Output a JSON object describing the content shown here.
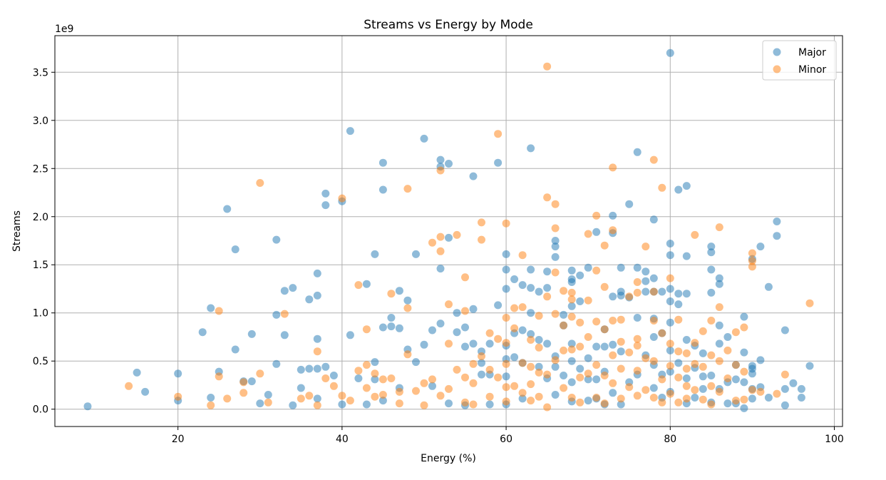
{
  "chart_data": {
    "type": "scatter",
    "title": "Streams vs Energy by Mode",
    "xlabel": "Energy (%)",
    "ylabel": "Streams",
    "y_offset_label": "1e9",
    "xlim": [
      5,
      101
    ],
    "ylim": [
      -0.18,
      3.88
    ],
    "x_ticks": [
      20,
      40,
      60,
      80,
      100
    ],
    "y_ticks": [
      0.0,
      0.5,
      1.0,
      1.5,
      2.0,
      2.5,
      3.0,
      3.5
    ],
    "x_tick_labels": [
      "20",
      "40",
      "60",
      "80",
      "100"
    ],
    "y_tick_labels": [
      "0.0",
      "0.5",
      "1.0",
      "1.5",
      "2.0",
      "2.5",
      "3.0",
      "3.5"
    ],
    "grid": true,
    "legend_position": "top-right",
    "series": [
      {
        "name": "Major",
        "color": "#1f77b4",
        "x": [
          9,
          15,
          16,
          20,
          20,
          23,
          24,
          24,
          25,
          26,
          27,
          27,
          28,
          29,
          29,
          30,
          31,
          32,
          32,
          32,
          33,
          33,
          34,
          34,
          35,
          35,
          36,
          36,
          37,
          37,
          37,
          37,
          37,
          38,
          38,
          38,
          39,
          40,
          40,
          41,
          41,
          42,
          43,
          43,
          44,
          44,
          44,
          45,
          45,
          45,
          45,
          46,
          46,
          47,
          47,
          47,
          48,
          48,
          49,
          49,
          50,
          50,
          51,
          51,
          52,
          52,
          52,
          52,
          53,
          53,
          53,
          54,
          54,
          55,
          55,
          55,
          56,
          56,
          56,
          57,
          57,
          57,
          58,
          58,
          58,
          59,
          59,
          60,
          60,
          60,
          60,
          60,
          60,
          60,
          61,
          61,
          61,
          62,
          62,
          62,
          62,
          63,
          63,
          63,
          63,
          63,
          64,
          64,
          64,
          65,
          65,
          65,
          65,
          66,
          66,
          66,
          66,
          66,
          66,
          67,
          67,
          67,
          68,
          68,
          68,
          68,
          68,
          68,
          68,
          68,
          69,
          69,
          69,
          70,
          70,
          70,
          70,
          71,
          71,
          71,
          71,
          72,
          72,
          72,
          72,
          73,
          73,
          73,
          73,
          73,
          74,
          74,
          74,
          74,
          74,
          75,
          75,
          75,
          76,
          76,
          76,
          76,
          77,
          77,
          77,
          77,
          78,
          78,
          78,
          78,
          78,
          78,
          78,
          79,
          79,
          79,
          79,
          80,
          80,
          80,
          80,
          80,
          80,
          80,
          80,
          80,
          81,
          81,
          81,
          81,
          82,
          82,
          82,
          82,
          82,
          82,
          83,
          83,
          83,
          84,
          84,
          84,
          85,
          85,
          85,
          85,
          85,
          85,
          86,
          86,
          86,
          86,
          86,
          87,
          87,
          87,
          88,
          88,
          88,
          89,
          89,
          89,
          89,
          90,
          90,
          90,
          90,
          90,
          90,
          91,
          91,
          91,
          92,
          92,
          93,
          93,
          94,
          94,
          94,
          95,
          96,
          96,
          97
        ],
        "y": [
          0.03,
          0.38,
          0.18,
          0.37,
          0.09,
          0.8,
          1.05,
          0.12,
          0.39,
          2.08,
          1.66,
          0.62,
          0.29,
          0.78,
          0.29,
          0.06,
          0.15,
          1.76,
          0.98,
          0.47,
          1.23,
          0.77,
          1.26,
          0.04,
          0.41,
          0.22,
          1.14,
          0.42,
          1.41,
          1.18,
          0.73,
          0.42,
          0.11,
          2.24,
          2.12,
          0.44,
          0.35,
          2.16,
          0.05,
          2.89,
          0.77,
          0.32,
          1.3,
          0.05,
          1.61,
          0.49,
          0.31,
          2.56,
          2.28,
          0.85,
          0.09,
          0.95,
          0.86,
          1.23,
          0.84,
          0.22,
          1.13,
          0.62,
          1.61,
          0.49,
          2.81,
          0.67,
          0.82,
          0.24,
          2.59,
          2.52,
          1.46,
          0.89,
          2.55,
          1.78,
          0.06,
          1.0,
          0.8,
          0.85,
          0.65,
          0.04,
          2.42,
          1.04,
          0.68,
          0.6,
          0.48,
          0.36,
          0.68,
          0.36,
          0.05,
          2.56,
          1.08,
          1.61,
          1.45,
          1.25,
          0.66,
          0.52,
          0.34,
          0.05,
          1.35,
          0.79,
          0.54,
          1.29,
          0.82,
          0.48,
          0.11,
          2.71,
          1.45,
          1.26,
          1.0,
          0.78,
          1.22,
          0.72,
          0.44,
          1.43,
          1.26,
          0.68,
          0.32,
          1.75,
          1.69,
          1.58,
          0.55,
          0.44,
          0.15,
          0.98,
          0.87,
          0.35,
          1.44,
          1.35,
          1.32,
          1.07,
          0.68,
          0.5,
          0.28,
          0.08,
          1.39,
          1.12,
          0.42,
          1.47,
          0.53,
          0.31,
          0.09,
          1.84,
          0.65,
          0.31,
          0.11,
          0.83,
          0.65,
          0.39,
          0.05,
          2.01,
          1.83,
          1.17,
          0.67,
          0.17,
          1.47,
          1.22,
          1.18,
          0.6,
          0.05,
          2.13,
          1.16,
          0.28,
          2.67,
          1.47,
          0.95,
          0.36,
          1.43,
          1.33,
          1.22,
          0.56,
          1.97,
          1.36,
          1.22,
          0.94,
          0.75,
          0.46,
          0.22,
          1.22,
          0.79,
          0.36,
          0.12,
          3.7,
          1.72,
          1.6,
          1.25,
          1.12,
          0.9,
          0.61,
          0.39,
          0.18,
          2.28,
          1.2,
          1.09,
          0.48,
          2.32,
          1.59,
          1.2,
          0.72,
          0.32,
          0.06,
          0.66,
          0.43,
          0.12,
          0.58,
          0.34,
          0.21,
          1.69,
          1.63,
          1.45,
          1.21,
          0.35,
          0.07,
          1.36,
          1.3,
          0.87,
          0.68,
          0.21,
          0.75,
          0.28,
          0.06,
          0.46,
          0.31,
          0.06,
          0.96,
          0.59,
          0.28,
          0.01,
          1.56,
          0.45,
          0.42,
          0.37,
          0.21,
          0.11,
          1.69,
          0.51,
          0.23,
          1.27,
          0.12,
          1.95,
          1.8,
          0.82,
          0.21,
          0.04,
          0.27,
          0.21,
          0.12,
          0.45
        ]
      },
      {
        "name": "Minor",
        "color": "#ff7f0e",
        "x": [
          14,
          20,
          24,
          25,
          25,
          26,
          28,
          28,
          30,
          30,
          31,
          33,
          35,
          36,
          37,
          37,
          38,
          39,
          40,
          40,
          41,
          42,
          42,
          43,
          43,
          43,
          44,
          44,
          45,
          45,
          46,
          46,
          47,
          47,
          48,
          48,
          48,
          49,
          50,
          50,
          51,
          51,
          52,
          52,
          52,
          52,
          53,
          53,
          53,
          54,
          54,
          55,
          55,
          55,
          55,
          56,
          56,
          56,
          57,
          57,
          57,
          58,
          58,
          58,
          59,
          59,
          59,
          60,
          60,
          60,
          60,
          60,
          60,
          61,
          61,
          61,
          62,
          62,
          62,
          62,
          63,
          63,
          63,
          63,
          64,
          64,
          64,
          64,
          65,
          65,
          65,
          65,
          65,
          66,
          66,
          66,
          66,
          66,
          67,
          67,
          67,
          67,
          68,
          68,
          68,
          68,
          68,
          69,
          69,
          69,
          69,
          70,
          70,
          70,
          70,
          71,
          71,
          71,
          71,
          71,
          72,
          72,
          72,
          72,
          72,
          73,
          73,
          73,
          73,
          73,
          74,
          74,
          74,
          74,
          75,
          75,
          75,
          76,
          76,
          76,
          76,
          76,
          76,
          77,
          77,
          77,
          78,
          78,
          78,
          78,
          78,
          79,
          79,
          79,
          79,
          80,
          80,
          80,
          80,
          81,
          81,
          81,
          81,
          82,
          82,
          82,
          82,
          83,
          83,
          83,
          83,
          84,
          84,
          84,
          85,
          85,
          85,
          85,
          86,
          86,
          86,
          86,
          87,
          87,
          88,
          88,
          88,
          89,
          89,
          89,
          90,
          90,
          90,
          90,
          91,
          93,
          94,
          97
        ],
        "y": [
          0.24,
          0.13,
          0.04,
          1.02,
          0.34,
          0.11,
          0.28,
          0.17,
          2.35,
          0.37,
          0.07,
          0.99,
          0.11,
          0.14,
          0.6,
          0.04,
          0.32,
          0.24,
          2.19,
          0.14,
          0.09,
          1.29,
          0.4,
          0.83,
          0.46,
          0.22,
          0.37,
          0.13,
          0.31,
          0.15,
          1.2,
          0.32,
          0.18,
          0.06,
          2.29,
          1.05,
          0.57,
          0.19,
          0.27,
          0.04,
          1.73,
          0.31,
          2.48,
          1.79,
          1.64,
          0.14,
          1.09,
          0.68,
          0.21,
          1.81,
          0.41,
          1.37,
          1.02,
          0.33,
          0.07,
          0.47,
          0.27,
          0.05,
          1.94,
          1.76,
          0.55,
          0.79,
          0.41,
          0.13,
          2.86,
          0.73,
          0.33,
          1.93,
          0.95,
          0.69,
          0.47,
          0.23,
          0.08,
          1.05,
          0.84,
          0.24,
          1.6,
          1.06,
          0.48,
          0.17,
          0.72,
          0.44,
          0.26,
          0.09,
          0.97,
          0.64,
          0.38,
          0.13,
          3.56,
          2.2,
          1.17,
          0.36,
          0.02,
          2.13,
          1.88,
          1.42,
          0.99,
          0.51,
          1.23,
          0.87,
          0.61,
          0.22,
          1.21,
          1.14,
          0.96,
          0.62,
          0.12,
          0.9,
          0.65,
          0.33,
          0.07,
          1.82,
          1.13,
          0.75,
          0.37,
          2.01,
          1.44,
          0.91,
          0.46,
          0.12,
          1.7,
          1.27,
          0.83,
          0.35,
          0.06,
          2.51,
          1.86,
          0.92,
          0.56,
          0.27,
          0.93,
          0.7,
          0.42,
          0.11,
          1.17,
          0.59,
          0.23,
          1.32,
          1.21,
          0.73,
          0.66,
          0.4,
          0.14,
          1.69,
          0.53,
          0.2,
          2.59,
          1.22,
          0.92,
          0.5,
          0.12,
          2.3,
          0.79,
          0.31,
          0.07,
          1.36,
          0.68,
          0.45,
          0.16,
          0.93,
          0.6,
          0.33,
          0.07,
          0.58,
          0.42,
          0.24,
          0.11,
          1.81,
          0.69,
          0.47,
          0.2,
          0.81,
          0.44,
          0.1,
          0.92,
          0.56,
          0.24,
          0.05,
          1.89,
          1.06,
          0.5,
          0.18,
          0.61,
          0.32,
          0.8,
          0.46,
          0.09,
          0.85,
          0.39,
          0.1,
          1.62,
          1.54,
          1.48,
          0.2,
          0.18,
          0.16,
          0.36,
          1.1
        ]
      }
    ]
  }
}
